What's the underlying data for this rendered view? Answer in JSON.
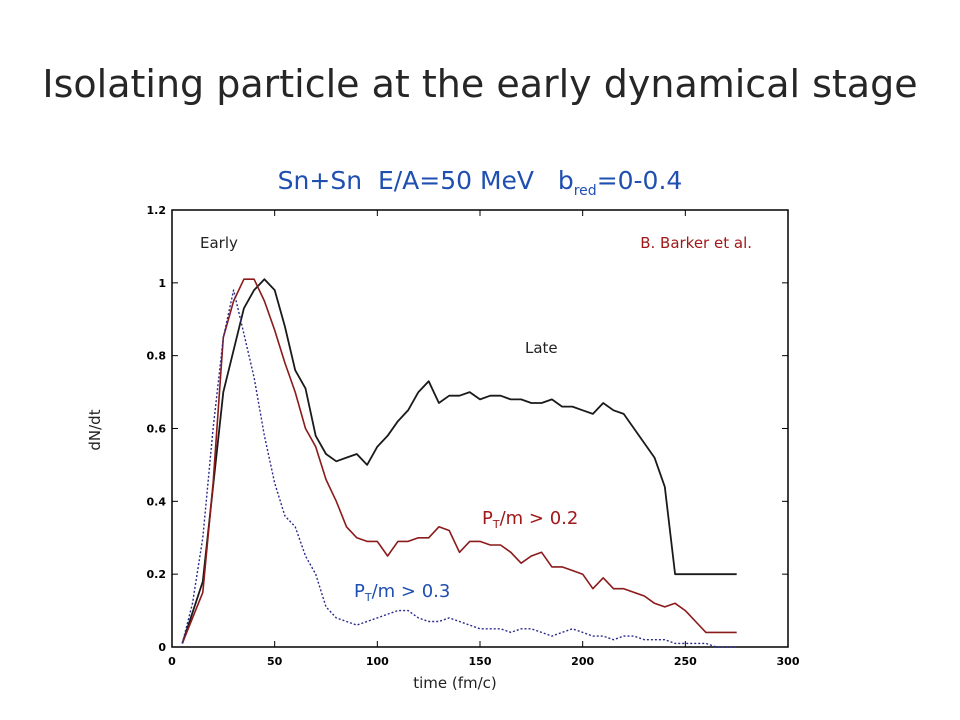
{
  "slide": {
    "title": "Isolating particle at the early dynamical stage",
    "subtitle_main": "Sn+Sn  E/A=50 MeV   b",
    "subtitle_sub": "red",
    "subtitle_tail": "=0-0.4"
  },
  "colors": {
    "black_series": "#1a1a1a",
    "red_series": "#8b1a1a",
    "blue_series": "#2a2a8c",
    "subtitle": "#1f4fb0",
    "credit": "#a01818"
  },
  "chart_data": {
    "type": "line",
    "title": "",
    "xlabel": "time (fm/c)",
    "ylabel": "dN/dt",
    "xlim": [
      0,
      300
    ],
    "ylim": [
      0,
      1.2
    ],
    "x_ticks": [
      "0",
      "50",
      "100",
      "150",
      "200",
      "250",
      "300"
    ],
    "y_ticks": [
      "0",
      "0.2",
      "0.4",
      "0.6",
      "0.8",
      "1",
      "1.2"
    ],
    "grid": false,
    "annotations": {
      "early": "Early",
      "late": "Late",
      "credit": "B. Barker et al.",
      "red_label_main": "P",
      "red_label_sub": "T",
      "red_label_tail": "/m > 0.2",
      "blue_label_main": "P",
      "blue_label_sub": "T",
      "blue_label_tail": "/m > 0.3"
    },
    "series": [
      {
        "style": "solid-black",
        "x": [
          5,
          15,
          25,
          35,
          40,
          45,
          50,
          55,
          60,
          65,
          70,
          75,
          80,
          85,
          90,
          95,
          100,
          105,
          110,
          115,
          120,
          125,
          130,
          135,
          140,
          145,
          150,
          155,
          160,
          165,
          170,
          175,
          180,
          185,
          190,
          195,
          200,
          205,
          210,
          215,
          220,
          225,
          230,
          235,
          240,
          245,
          250,
          255,
          260,
          265,
          270,
          275
        ],
        "y": [
          0.01,
          0.18,
          0.7,
          0.93,
          0.98,
          1.01,
          0.98,
          0.88,
          0.76,
          0.71,
          0.58,
          0.53,
          0.51,
          0.52,
          0.53,
          0.5,
          0.55,
          0.58,
          0.62,
          0.65,
          0.7,
          0.73,
          0.67,
          0.69,
          0.69,
          0.7,
          0.68,
          0.69,
          0.69,
          0.68,
          0.68,
          0.67,
          0.67,
          0.68,
          0.66,
          0.66,
          0.65,
          0.64,
          0.67,
          0.65,
          0.64,
          0.6,
          0.56,
          0.52,
          0.44,
          0.2,
          0.2,
          0.2,
          0.2,
          0.2,
          0.2,
          0.2
        ]
      },
      {
        "style": "solid-red",
        "x": [
          5,
          15,
          20,
          25,
          30,
          35,
          40,
          45,
          50,
          55,
          60,
          65,
          70,
          75,
          80,
          85,
          90,
          95,
          100,
          105,
          110,
          115,
          120,
          125,
          130,
          135,
          140,
          145,
          150,
          155,
          160,
          165,
          170,
          175,
          180,
          185,
          190,
          195,
          200,
          205,
          210,
          215,
          220,
          225,
          230,
          235,
          240,
          245,
          250,
          255,
          260,
          265,
          270,
          275
        ],
        "y": [
          0.01,
          0.15,
          0.45,
          0.85,
          0.95,
          1.01,
          1.01,
          0.95,
          0.87,
          0.78,
          0.7,
          0.6,
          0.55,
          0.46,
          0.4,
          0.33,
          0.3,
          0.29,
          0.29,
          0.25,
          0.29,
          0.29,
          0.3,
          0.3,
          0.33,
          0.32,
          0.26,
          0.29,
          0.29,
          0.28,
          0.28,
          0.26,
          0.23,
          0.25,
          0.26,
          0.22,
          0.22,
          0.21,
          0.2,
          0.16,
          0.19,
          0.16,
          0.16,
          0.15,
          0.14,
          0.12,
          0.11,
          0.12,
          0.1,
          0.07,
          0.04,
          0.04,
          0.04,
          0.04
        ]
      },
      {
        "style": "dotted-blue",
        "x": [
          5,
          10,
          15,
          20,
          25,
          30,
          35,
          40,
          45,
          50,
          55,
          60,
          65,
          70,
          75,
          80,
          85,
          90,
          95,
          100,
          105,
          110,
          115,
          120,
          125,
          130,
          135,
          140,
          145,
          150,
          155,
          160,
          165,
          170,
          175,
          180,
          185,
          190,
          195,
          200,
          205,
          210,
          215,
          220,
          225,
          230,
          235,
          240,
          245,
          250,
          255,
          260,
          265,
          270,
          275
        ],
        "y": [
          0.01,
          0.12,
          0.3,
          0.6,
          0.85,
          0.98,
          0.86,
          0.74,
          0.58,
          0.45,
          0.36,
          0.33,
          0.25,
          0.2,
          0.11,
          0.08,
          0.07,
          0.06,
          0.07,
          0.08,
          0.09,
          0.1,
          0.1,
          0.08,
          0.07,
          0.07,
          0.08,
          0.07,
          0.06,
          0.05,
          0.05,
          0.05,
          0.04,
          0.05,
          0.05,
          0.04,
          0.03,
          0.04,
          0.05,
          0.04,
          0.03,
          0.03,
          0.02,
          0.03,
          0.03,
          0.02,
          0.02,
          0.02,
          0.01,
          0.01,
          0.01,
          0.01,
          0.0,
          0.0,
          0.0
        ]
      }
    ]
  }
}
